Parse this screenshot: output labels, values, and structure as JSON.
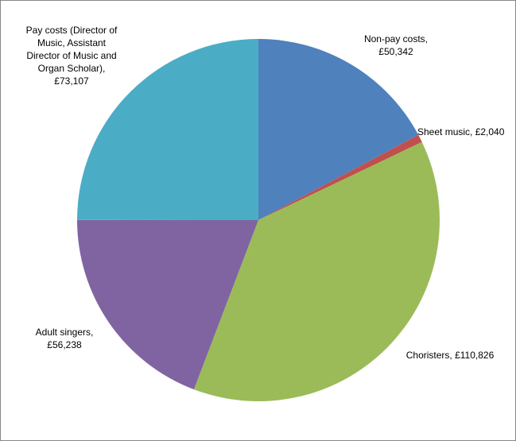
{
  "chart_data": {
    "type": "pie",
    "values": [
      50342,
      2040,
      110826,
      56238,
      73107
    ],
    "value_labels": [
      "Non-pay costs, £50,342",
      "Sheet music, £2,040",
      "Choristers, £110,826",
      "Adult singers, £56,238",
      "Pay costs (Director of Music, Assistant Director of Music and Organ Scholar), £73,107"
    ],
    "colors": [
      "#4f81bd",
      "#c0504d",
      "#9bbb59",
      "#8064a2",
      "#4bacc6"
    ]
  }
}
